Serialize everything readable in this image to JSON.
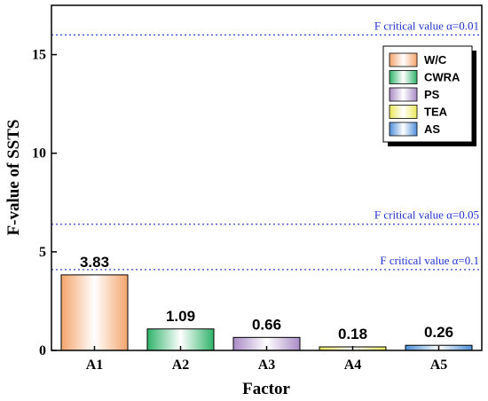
{
  "chart_data": {
    "type": "bar",
    "categories": [
      "A1",
      "A2",
      "A3",
      "A4",
      "A5"
    ],
    "values": [
      3.83,
      1.09,
      0.66,
      0.18,
      0.26
    ],
    "value_labels": [
      "3.83",
      "1.09",
      "0.66",
      "0.18",
      "0.26"
    ],
    "xlabel": "Factor",
    "ylabel": "F-value of SSTS",
    "ylim": [
      0,
      17.5
    ],
    "yticks": [
      0,
      5,
      10,
      15
    ],
    "grid": false,
    "legend_position": "top-right",
    "legend": [
      {
        "name": "W/C",
        "color": "#f4a46c"
      },
      {
        "name": "CWRA",
        "color": "#2fb36a"
      },
      {
        "name": "PS",
        "color": "#a98bc6"
      },
      {
        "name": "TEA",
        "color": "#e9e85a"
      },
      {
        "name": "AS",
        "color": "#4d8fd8"
      }
    ],
    "reference_lines": [
      {
        "value": 16.0,
        "label": "F critical value α=0.01"
      },
      {
        "value": 6.4,
        "label": "F critical value α=0.05"
      },
      {
        "value": 4.1,
        "label": "F critical value α=0.1"
      }
    ],
    "reference_color": "#3344cc"
  }
}
